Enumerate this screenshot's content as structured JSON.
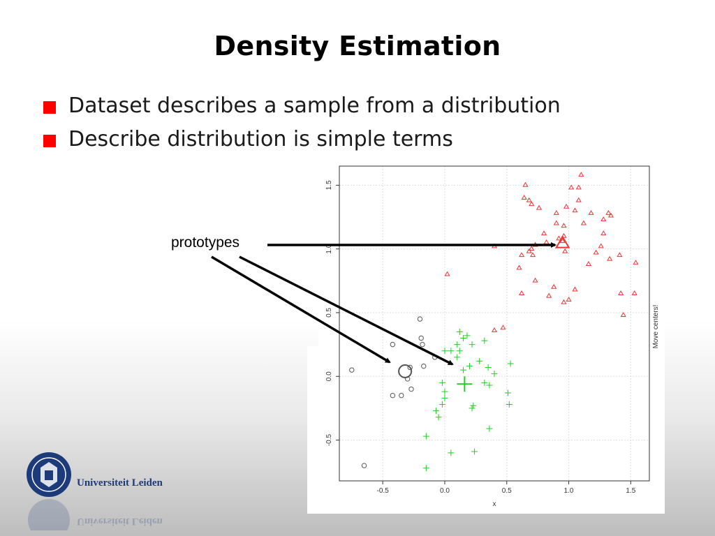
{
  "slide": {
    "title": "Density Estimation",
    "bullets": [
      "Dataset describes a sample from a distribution",
      "Describe distribution is simple terms"
    ],
    "annotation": "prototypes",
    "bullet_color": "#ff0000"
  },
  "logo": {
    "text": "Universiteit Leiden",
    "color": "#1d3a7a"
  },
  "chart_data": {
    "type": "scatter",
    "xlabel": "x",
    "ylabel": "",
    "right_label": "Move centers!",
    "xlim": [
      -0.85,
      1.65
    ],
    "ylim": [
      -0.82,
      1.65
    ],
    "xticks": [
      -0.5,
      0.0,
      0.5,
      1.0,
      1.5
    ],
    "xtick_labels": [
      "-0.5",
      "0.0",
      "0.5",
      "1.0",
      "1.5"
    ],
    "yticks": [
      -0.5,
      0.0,
      0.5,
      1.0,
      1.5
    ],
    "ytick_labels": [
      "-0.5",
      "0.0",
      "0.5",
      "1.0",
      "1.5"
    ],
    "grid": true,
    "series": [
      {
        "marker": "circle",
        "color": "#555555",
        "points": [
          [
            -0.75,
            0.05
          ],
          [
            -0.42,
            0.25
          ],
          [
            -0.28,
            0.07
          ],
          [
            -0.3,
            -0.02
          ],
          [
            -0.35,
            -0.15
          ],
          [
            -0.42,
            -0.15
          ],
          [
            -0.27,
            -0.1
          ],
          [
            -0.2,
            0.45
          ],
          [
            -0.19,
            0.3
          ],
          [
            -0.18,
            0.25
          ],
          [
            -0.17,
            0.08
          ],
          [
            -0.08,
            0.15
          ],
          [
            -0.65,
            -0.7
          ]
        ]
      },
      {
        "marker": "plus",
        "color": "#22cc22",
        "points": [
          [
            0.12,
            0.35
          ],
          [
            0.15,
            0.3
          ],
          [
            0.18,
            0.32
          ],
          [
            0.1,
            0.25
          ],
          [
            0.12,
            0.2
          ],
          [
            0.0,
            0.2
          ],
          [
            0.05,
            0.2
          ],
          [
            0.22,
            0.25
          ],
          [
            0.32,
            0.28
          ],
          [
            0.1,
            0.15
          ],
          [
            0.15,
            0.05
          ],
          [
            0.28,
            0.12
          ],
          [
            0.2,
            0.08
          ],
          [
            0.35,
            0.07
          ],
          [
            0.4,
            0.02
          ],
          [
            0.32,
            -0.05
          ],
          [
            0.36,
            -0.07
          ],
          [
            0.53,
            0.1
          ],
          [
            -0.02,
            -0.05
          ],
          [
            0.0,
            -0.12
          ],
          [
            0.0,
            -0.17
          ],
          [
            -0.02,
            -0.22
          ],
          [
            -0.07,
            -0.27
          ],
          [
            -0.05,
            -0.32
          ],
          [
            0.23,
            -0.23
          ],
          [
            0.22,
            -0.25
          ],
          [
            0.51,
            -0.13
          ],
          [
            0.52,
            -0.22
          ],
          [
            0.36,
            -0.41
          ],
          [
            -0.15,
            -0.47
          ],
          [
            0.05,
            -0.6
          ],
          [
            0.24,
            -0.59
          ],
          [
            -0.15,
            -0.72
          ]
        ]
      },
      {
        "marker": "triangle",
        "color": "#ee3333",
        "points": [
          [
            1.1,
            1.58
          ],
          [
            0.65,
            1.5
          ],
          [
            1.02,
            1.48
          ],
          [
            1.08,
            1.48
          ],
          [
            0.64,
            1.4
          ],
          [
            0.68,
            1.38
          ],
          [
            0.7,
            1.35
          ],
          [
            1.08,
            1.38
          ],
          [
            0.98,
            1.33
          ],
          [
            1.05,
            1.3
          ],
          [
            0.76,
            1.32
          ],
          [
            0.9,
            1.28
          ],
          [
            1.18,
            1.28
          ],
          [
            1.32,
            1.28
          ],
          [
            1.34,
            1.26
          ],
          [
            1.28,
            1.23
          ],
          [
            0.9,
            1.2
          ],
          [
            1.12,
            1.2
          ],
          [
            0.96,
            1.18
          ],
          [
            0.8,
            1.12
          ],
          [
            0.92,
            1.08
          ],
          [
            0.95,
            1.06
          ],
          [
            1.28,
            1.12
          ],
          [
            0.96,
            1.1
          ],
          [
            0.82,
            1.05
          ],
          [
            0.73,
            1.03
          ],
          [
            0.7,
            1.0
          ],
          [
            0.71,
            0.95
          ],
          [
            0.68,
            0.98
          ],
          [
            0.62,
            0.95
          ],
          [
            0.97,
            0.98
          ],
          [
            1.26,
            1.02
          ],
          [
            1.22,
            0.97
          ],
          [
            1.33,
            0.92
          ],
          [
            1.41,
            0.95
          ],
          [
            1.16,
            0.88
          ],
          [
            1.54,
            0.89
          ],
          [
            0.4,
            1.02
          ],
          [
            0.6,
            0.85
          ],
          [
            0.02,
            0.8
          ],
          [
            0.73,
            0.75
          ],
          [
            0.88,
            0.7
          ],
          [
            0.62,
            0.65
          ],
          [
            0.84,
            0.63
          ],
          [
            0.96,
            0.58
          ],
          [
            1.0,
            0.6
          ],
          [
            1.05,
            0.68
          ],
          [
            1.42,
            0.65
          ],
          [
            1.53,
            0.65
          ],
          [
            1.44,
            0.48
          ],
          [
            0.4,
            0.36
          ],
          [
            0.47,
            0.38
          ]
        ]
      }
    ],
    "prototypes": [
      {
        "marker": "circle",
        "color": "#555555",
        "point": [
          -0.32,
          0.04
        ]
      },
      {
        "marker": "plus",
        "color": "#22cc22",
        "point": [
          0.16,
          -0.06
        ]
      },
      {
        "marker": "triangle",
        "color": "#ee3333",
        "point": [
          0.95,
          1.04
        ]
      }
    ]
  }
}
